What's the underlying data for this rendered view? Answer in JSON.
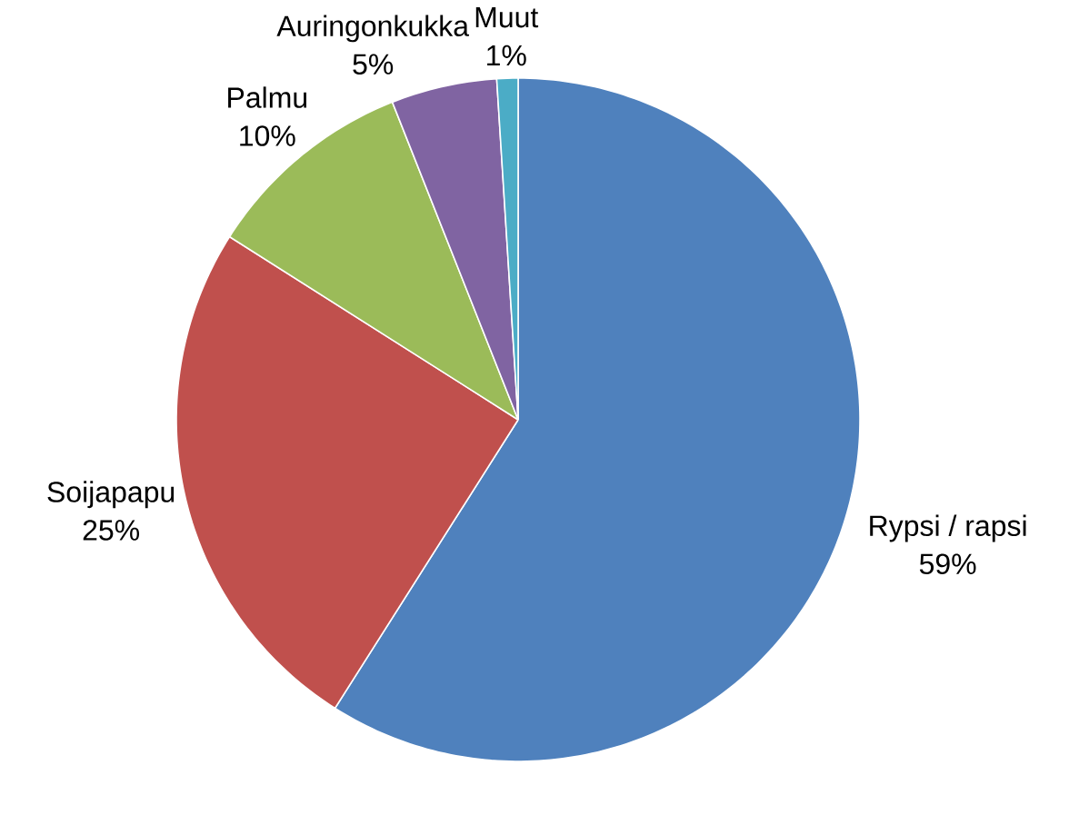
{
  "chart_data": {
    "type": "pie",
    "categories": [
      "Rypsi / rapsi",
      "Soijapapu",
      "Palmu",
      "Auringonkukka",
      "Muut"
    ],
    "values": [
      59,
      25,
      10,
      5,
      1
    ],
    "value_labels": [
      "59%",
      "25%",
      "10%",
      "5%",
      "1%"
    ],
    "colors": [
      "#4f81bd",
      "#c0504d",
      "#9bbb59",
      "#8064a2",
      "#4bacc6"
    ]
  }
}
